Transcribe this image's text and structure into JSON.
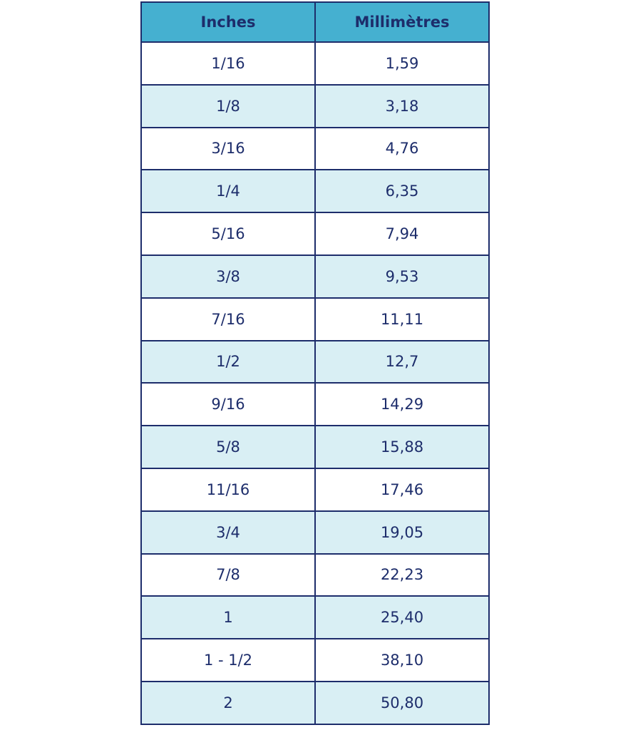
{
  "table": {
    "headers": [
      "Inches",
      "Millimètres"
    ],
    "rows": [
      [
        "1/16",
        "1,59"
      ],
      [
        "1/8",
        "3,18"
      ],
      [
        "3/16",
        "4,76"
      ],
      [
        "1/4",
        "6,35"
      ],
      [
        "5/16",
        "7,94"
      ],
      [
        "3/8",
        "9,53"
      ],
      [
        "7/16",
        "11,11"
      ],
      [
        "1/2",
        "12,7"
      ],
      [
        "9/16",
        "14,29"
      ],
      [
        "5/8",
        "15,88"
      ],
      [
        "11/16",
        "17,46"
      ],
      [
        "3/4",
        "19,05"
      ],
      [
        "7/8",
        "22,23"
      ],
      [
        "1",
        "25,40"
      ],
      [
        "1 - 1/2",
        "38,10"
      ],
      [
        "2",
        "50,80"
      ]
    ]
  }
}
